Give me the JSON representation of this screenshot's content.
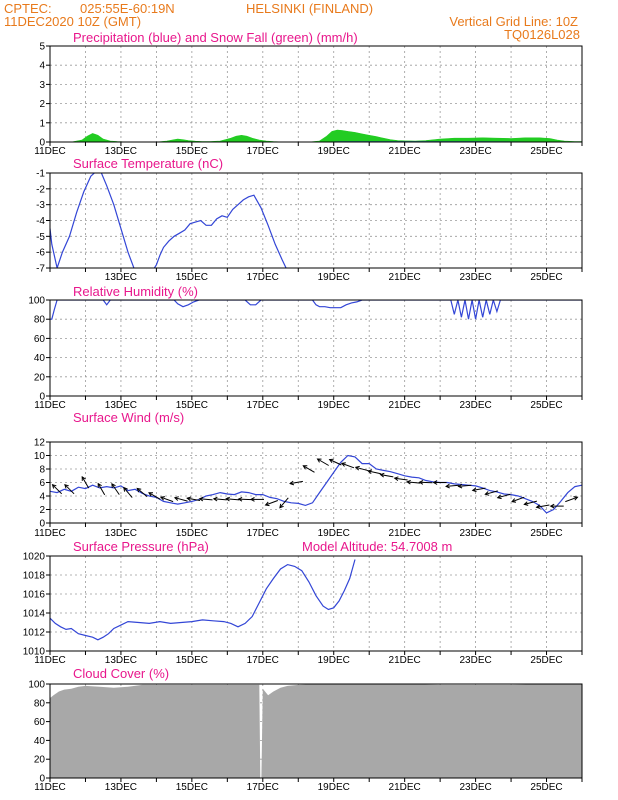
{
  "header": {
    "source": "CPTEC:",
    "coords": "025:55E-60:19N",
    "location": "HELSINKI (FINLAND)",
    "run": "11DEC2020 10Z (GMT)",
    "grid_note": "Vertical Grid Line: 10Z",
    "code": "TQ0126L028"
  },
  "colors": {
    "header": "#e87a1c",
    "title": "#e8178c",
    "line": "#3346d6",
    "snow": "#22cc22",
    "cloud": "#a8a8a8"
  },
  "chart_data": [
    {
      "id": "precip",
      "type": "bar",
      "title": "Precipitation (blue) and Snow Fall (green) (mm/h)",
      "xlabel": "",
      "ylabel": "",
      "ylim": [
        0,
        5
      ],
      "yticks": [
        "0",
        "1",
        "2",
        "3",
        "4",
        "5"
      ],
      "xticks": [
        "11DEC",
        "13DEC",
        "15DEC",
        "17DEC",
        "19DEC",
        "21DEC",
        "23DEC",
        "25DEC"
      ],
      "grid": true,
      "series": [
        {
          "name": "Snow Fall",
          "color": "#22cc22",
          "x": [
            0.0,
            0.6,
            0.9,
            1.05,
            1.2,
            1.35,
            1.5,
            1.7,
            1.9,
            2.2,
            2.6,
            3.0,
            3.3,
            3.5,
            3.6,
            3.75,
            3.9,
            4.1,
            4.3,
            4.5,
            4.8,
            5.1,
            5.25,
            5.4,
            5.55,
            5.7,
            5.9,
            6.1,
            6.3,
            6.6,
            7.0,
            7.3,
            7.6,
            7.8,
            7.95,
            8.1,
            8.25,
            8.4,
            8.6,
            8.8,
            9.0,
            9.2,
            9.4,
            9.6,
            9.8,
            10.0,
            10.3,
            10.6,
            11.0,
            11.4,
            11.8,
            12.2,
            12.6,
            13.0,
            13.4,
            13.8,
            14.1,
            14.3,
            14.5,
            14.8,
            15.0
          ],
          "y": [
            0.0,
            0.0,
            0.1,
            0.3,
            0.45,
            0.35,
            0.15,
            0.05,
            0.02,
            0.0,
            0.0,
            0.0,
            0.05,
            0.12,
            0.15,
            0.12,
            0.08,
            0.04,
            0.02,
            0.02,
            0.05,
            0.2,
            0.3,
            0.35,
            0.3,
            0.2,
            0.1,
            0.05,
            0.02,
            0.0,
            0.0,
            0.0,
            0.05,
            0.3,
            0.55,
            0.62,
            0.6,
            0.55,
            0.5,
            0.42,
            0.35,
            0.28,
            0.2,
            0.12,
            0.08,
            0.06,
            0.05,
            0.08,
            0.15,
            0.2,
            0.2,
            0.22,
            0.2,
            0.18,
            0.22,
            0.22,
            0.18,
            0.1,
            0.05,
            0.02,
            0.02
          ]
        },
        {
          "name": "Precipitation",
          "color": "#3346d6",
          "x": [
            0.0,
            2.0,
            4.0,
            6.0,
            7.6,
            8.2,
            9.0,
            10.0,
            12.0,
            15.0
          ],
          "y": [
            0.0,
            0.0,
            0.0,
            0.0,
            0.0,
            0.02,
            0.02,
            0.02,
            0.02,
            0.0
          ]
        }
      ]
    },
    {
      "id": "temp",
      "type": "line",
      "title": "Surface Temperature (nC)",
      "xlabel": "",
      "ylabel": "",
      "ylim": [
        -7,
        -1
      ],
      "yticks": [
        "-7",
        "-6",
        "-5",
        "-4",
        "-3",
        "-2",
        "-1"
      ],
      "xticks": [
        "13DEC",
        "15DEC",
        "17DEC",
        "19DEC",
        "21DEC",
        "23DEC",
        "25DEC"
      ],
      "grid": true,
      "series": [
        {
          "name": "Surface Temperature",
          "color": "#3346d6",
          "x": [
            0.0,
            0.05,
            0.2,
            0.35,
            0.55,
            0.75,
            0.95,
            1.15,
            1.3,
            1.45,
            1.6,
            1.8,
            2.0,
            2.2,
            2.4,
            2.6,
            2.8,
            3.0,
            3.1,
            3.2,
            3.35,
            3.5,
            3.65,
            3.8,
            3.95,
            4.1,
            4.25,
            4.4,
            4.55,
            4.7,
            4.85,
            5.0,
            5.15,
            5.3,
            5.45,
            5.6,
            5.75,
            5.95,
            6.15,
            6.35,
            6.55,
            6.7
          ],
          "y": [
            -4.5,
            -5.5,
            -7.0,
            -6.0,
            -5.0,
            -3.5,
            -2.2,
            -1.2,
            -0.9,
            -1.0,
            -1.8,
            -3.0,
            -4.5,
            -6.0,
            -7.2,
            -8.0,
            -7.5,
            -6.8,
            -6.2,
            -5.7,
            -5.3,
            -5.0,
            -4.8,
            -4.6,
            -4.2,
            -4.1,
            -4.0,
            -4.3,
            -4.3,
            -3.9,
            -3.7,
            -3.8,
            -3.3,
            -3.0,
            -2.7,
            -2.5,
            -2.4,
            -3.2,
            -4.3,
            -5.5,
            -6.5,
            -7.2
          ]
        }
      ]
    },
    {
      "id": "rh",
      "type": "line",
      "title": "Relative Humidity (%)",
      "xlabel": "",
      "ylabel": "",
      "ylim": [
        0,
        100
      ],
      "yticks": [
        "0",
        "20",
        "40",
        "60",
        "80",
        "100"
      ],
      "xticks": [
        "11DEC",
        "13DEC",
        "15DEC",
        "17DEC",
        "19DEC",
        "21DEC",
        "23DEC",
        "25DEC"
      ],
      "grid": true,
      "series": [
        {
          "name": "Relative Humidity",
          "color": "#3346d6",
          "x": [
            0.0,
            0.05,
            0.12,
            0.2,
            0.5,
            1.5,
            1.6,
            1.7,
            1.8,
            2.5,
            3.5,
            3.6,
            3.75,
            3.9,
            4.05,
            4.2,
            5.0,
            5.5,
            5.65,
            5.8,
            5.95,
            6.2,
            7.0,
            7.4,
            7.5,
            7.6,
            7.75,
            7.9,
            8.05,
            8.2,
            8.35,
            8.5,
            8.65,
            8.8,
            9.0,
            10.0,
            11.0,
            11.3,
            11.4,
            11.5,
            11.6,
            11.7,
            11.8,
            11.9,
            12.0,
            12.1,
            12.2,
            12.3,
            12.4,
            12.5,
            12.6,
            12.7,
            12.8,
            13.0,
            14.0,
            15.0
          ],
          "y": [
            80,
            80,
            90,
            100,
            100,
            100,
            95,
            100,
            100,
            100,
            100,
            96,
            93,
            95,
            98,
            100,
            100,
            100,
            95,
            95,
            100,
            100,
            100,
            100,
            95,
            93,
            93,
            92,
            92,
            92,
            95,
            97,
            98,
            100,
            100,
            100,
            100,
            100,
            85,
            100,
            82,
            100,
            80,
            100,
            80,
            100,
            82,
            100,
            85,
            100,
            88,
            100,
            100,
            100,
            100,
            100
          ]
        }
      ]
    },
    {
      "id": "wind",
      "type": "line",
      "title": "Surface Wind (m/s)",
      "xlabel": "",
      "ylabel": "",
      "ylim": [
        0,
        12
      ],
      "yticks": [
        "0",
        "2",
        "4",
        "6",
        "8",
        "10",
        "12"
      ],
      "xticks": [
        "11DEC",
        "13DEC",
        "15DEC",
        "17DEC",
        "19DEC",
        "21DEC",
        "23DEC",
        "25DEC"
      ],
      "grid": true,
      "series": [
        {
          "name": "Surface Wind",
          "color": "#3346d6",
          "x": [
            0.0,
            0.2,
            0.4,
            0.6,
            0.8,
            1.0,
            1.2,
            1.4,
            1.6,
            1.8,
            2.0,
            2.2,
            2.4,
            2.6,
            2.8,
            3.0,
            3.2,
            3.4,
            3.6,
            3.8,
            4.0,
            4.2,
            4.4,
            4.6,
            4.8,
            5.0,
            5.2,
            5.4,
            5.6,
            5.8,
            6.0,
            6.2,
            6.4,
            6.6,
            6.8,
            7.0,
            7.2,
            7.4,
            7.6,
            7.8,
            8.0,
            8.2,
            8.4,
            8.6,
            8.8,
            9.0,
            9.2,
            9.4,
            9.6,
            9.8,
            10.0,
            10.2,
            10.4,
            10.6,
            10.8,
            11.0,
            11.2,
            11.4,
            11.6,
            11.8,
            12.0,
            12.2,
            12.4,
            12.6,
            12.8,
            13.0,
            13.2,
            13.4,
            13.6,
            13.8,
            14.0,
            14.2,
            14.4,
            14.6,
            14.8,
            15.0
          ],
          "y": [
            4.7,
            4.5,
            5.0,
            4.7,
            5.3,
            5.1,
            5.6,
            5.2,
            5.4,
            5.2,
            5.5,
            4.8,
            5.0,
            4.4,
            4.0,
            3.8,
            3.2,
            3.0,
            2.8,
            3.0,
            3.2,
            3.5,
            4.0,
            4.2,
            4.5,
            4.3,
            4.2,
            4.6,
            4.5,
            4.2,
            4.2,
            3.8,
            3.6,
            3.2,
            3.0,
            2.9,
            2.6,
            3.0,
            4.5,
            6.0,
            7.5,
            9.0,
            10.0,
            9.8,
            8.8,
            8.8,
            8.0,
            7.8,
            7.6,
            7.3,
            7.0,
            6.8,
            6.7,
            6.3,
            6.1,
            6.0,
            6.0,
            5.8,
            5.7,
            5.6,
            5.5,
            5.2,
            4.8,
            4.6,
            4.3,
            4.2,
            4.0,
            3.6,
            3.2,
            2.6,
            1.5,
            2.0,
            3.2,
            4.5,
            5.4,
            5.6
          ]
        }
      ],
      "arrows": {
        "x": [
          0.2,
          0.55,
          1.0,
          1.45,
          1.85,
          2.2,
          2.6,
          2.95,
          3.3,
          3.7,
          4.05,
          4.4,
          4.8,
          5.15,
          5.5,
          5.85,
          6.25,
          6.6,
          6.95,
          7.3,
          7.7,
          8.05,
          8.4,
          8.8,
          9.15,
          9.5,
          9.9,
          10.25,
          10.6,
          11.0,
          11.35,
          11.7,
          12.1,
          12.45,
          12.8,
          13.2,
          13.55,
          13.9,
          14.3,
          14.7
        ],
        "dir": [
          135,
          135,
          120,
          120,
          125,
          130,
          140,
          150,
          160,
          165,
          170,
          175,
          175,
          175,
          178,
          180,
          200,
          230,
          190,
          150,
          150,
          155,
          160,
          165,
          168,
          170,
          172,
          175,
          178,
          180,
          185,
          185,
          190,
          195,
          195,
          200,
          195,
          190,
          180,
          20
        ],
        "speed": [
          5,
          5,
          6,
          5,
          5,
          4.5,
          4.5,
          4,
          3.5,
          3.5,
          3.5,
          3.5,
          3.5,
          3.5,
          3.5,
          3.5,
          3,
          3,
          6,
          8,
          9,
          9,
          8.5,
          8,
          7.5,
          7,
          6.5,
          6,
          6,
          6,
          5.5,
          5.5,
          5,
          4.5,
          4,
          3.5,
          3,
          2.5,
          2.5,
          3.5
        ]
      }
    },
    {
      "id": "pressure",
      "type": "line",
      "title": "Surface Pressure (hPa)",
      "subtitle": "Model Altitude: 54.7008 m",
      "xlabel": "",
      "ylabel": "",
      "ylim": [
        1010,
        1021
      ],
      "yticks": [
        "1010",
        "1012",
        "1014",
        "1016",
        "1018",
        "1020"
      ],
      "xticks": [
        "11DEC",
        "13DEC",
        "15DEC",
        "17DEC",
        "19DEC",
        "21DEC",
        "23DEC",
        "25DEC"
      ],
      "grid": true,
      "series": [
        {
          "name": "Surface Pressure",
          "color": "#3346d6",
          "x": [
            0.0,
            0.15,
            0.3,
            0.45,
            0.6,
            0.8,
            1.0,
            1.2,
            1.35,
            1.5,
            1.65,
            1.8,
            2.0,
            2.2,
            2.5,
            2.8,
            3.1,
            3.4,
            3.7,
            4.0,
            4.3,
            4.6,
            4.9,
            5.1,
            5.3,
            5.5,
            5.7,
            5.9,
            6.1,
            6.3,
            6.5,
            6.7,
            6.9,
            7.1,
            7.3,
            7.5,
            7.7,
            7.85,
            8.0,
            8.15,
            8.3,
            8.45,
            8.6
          ],
          "y": [
            1013.8,
            1013.2,
            1012.8,
            1012.5,
            1012.6,
            1012.0,
            1011.8,
            1011.6,
            1011.3,
            1011.6,
            1012.0,
            1012.6,
            1013.0,
            1013.4,
            1013.3,
            1013.2,
            1013.4,
            1013.2,
            1013.3,
            1013.4,
            1013.6,
            1013.5,
            1013.4,
            1013.2,
            1012.8,
            1013.2,
            1014.0,
            1015.6,
            1017.2,
            1018.4,
            1019.5,
            1020.0,
            1019.8,
            1019.3,
            1018.0,
            1016.4,
            1015.2,
            1014.8,
            1015.0,
            1015.8,
            1017.0,
            1018.4,
            1020.6
          ]
        }
      ]
    },
    {
      "id": "cloud",
      "type": "area",
      "title": "Cloud Cover (%)",
      "xlabel": "",
      "ylabel": "",
      "ylim": [
        0,
        100
      ],
      "yticks": [
        "0",
        "20",
        "40",
        "60",
        "80",
        "100"
      ],
      "xticks": [
        "11DEC",
        "13DEC",
        "15DEC",
        "17DEC",
        "19DEC",
        "21DEC",
        "23DEC",
        "25DEC"
      ],
      "grid": true,
      "series": [
        {
          "name": "Cloud Cover",
          "color": "#a8a8a8",
          "x": [
            0.0,
            0.1,
            0.25,
            0.4,
            0.6,
            0.8,
            1.0,
            1.4,
            1.8,
            2.2,
            2.6,
            3.0,
            3.5,
            4.0,
            4.5,
            5.0,
            5.5,
            5.9,
            5.93,
            5.96,
            6.0,
            6.15,
            6.3,
            6.5,
            6.7,
            7.0,
            7.5,
            8.0,
            8.5,
            9.0,
            10.0,
            11.0,
            12.0,
            13.0,
            14.0,
            15.0
          ],
          "y": [
            85,
            88,
            92,
            94,
            95,
            97,
            98,
            97,
            96,
            97,
            99,
            99,
            99,
            99,
            99,
            99,
            99,
            99,
            0,
            0,
            95,
            88,
            92,
            96,
            98,
            99,
            100,
            100,
            100,
            100,
            100,
            99,
            99,
            99,
            100,
            100
          ]
        }
      ]
    }
  ]
}
